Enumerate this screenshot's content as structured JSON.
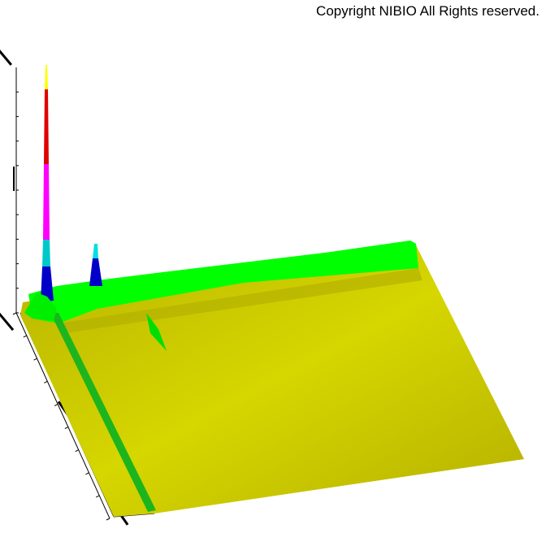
{
  "copyright": "Copyright NIBIO All Rights reserved.",
  "chart_data": {
    "type": "surface3d",
    "title": "",
    "xlabel": "",
    "ylabel": "",
    "zlabel": "",
    "colormap": [
      "#c8c800",
      "#00ff00",
      "#0000c8",
      "#00c8c8",
      "#ff00ff",
      "#e00000",
      "#ffff00"
    ],
    "peaks": [
      {
        "position": "near origin",
        "relative_height": 1.0
      },
      {
        "position": "second",
        "relative_height": 0.2
      },
      {
        "position": "third",
        "relative_height": 0.05
      }
    ],
    "grid": false
  }
}
